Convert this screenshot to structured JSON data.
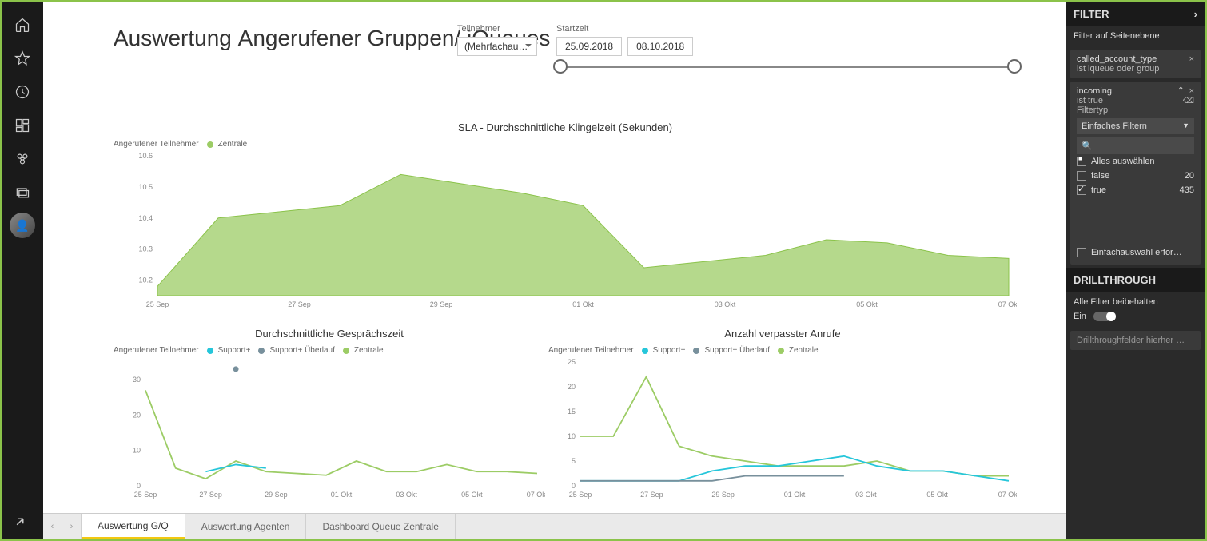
{
  "sidebar": {
    "items": [
      "home",
      "favorite",
      "recent",
      "workspace",
      "apps",
      "share",
      "avatar"
    ]
  },
  "page": {
    "title_light": "Auswertung ",
    "title_bold": "Angerufener Gruppen/ iQueues"
  },
  "teilnehmer": {
    "label": "Teilnehmer",
    "value": "(Mehrfachau…"
  },
  "startzeit": {
    "label": "Startzeit",
    "from": "25.09.2018",
    "to": "08.10.2018"
  },
  "colors": {
    "zentrale": "#9ccc65",
    "zentrale_line": "#8bc34a",
    "support": "#26c6da",
    "support_ueberlauf": "#78909c",
    "axis": "#888888",
    "text": "#666666"
  },
  "chart1": {
    "title": "SLA - Durchschnittliche Klingelzeit (Sekunden)",
    "legend_label": "Angerufener Teilnehmer",
    "legend_items": [
      {
        "label": "Zentrale",
        "color": "#9ccc65"
      }
    ],
    "type": "area",
    "x_labels": [
      "25 Sep",
      "27 Sep",
      "29 Sep",
      "01 Okt",
      "03 Okt",
      "05 Okt",
      "07 Okt"
    ],
    "y_ticks": [
      10.2,
      10.3,
      10.4,
      10.5,
      10.6
    ],
    "y_min": 10.15,
    "y_max": 10.6,
    "series": [
      {
        "name": "Zentrale",
        "color": "#9ccc65",
        "values": [
          10.18,
          10.4,
          10.42,
          10.44,
          10.54,
          10.51,
          10.48,
          10.44,
          10.24,
          10.26,
          10.28,
          10.33,
          10.32,
          10.28,
          10.27
        ]
      }
    ]
  },
  "chart2": {
    "title": "Durchschnittliche Gesprächszeit",
    "legend_label": "Angerufener Teilnehmer",
    "legend_items": [
      {
        "label": "Support+",
        "color": "#26c6da"
      },
      {
        "label": "Support+ Überlauf",
        "color": "#78909c"
      },
      {
        "label": "Zentrale",
        "color": "#9ccc65"
      }
    ],
    "type": "line",
    "x_labels": [
      "25 Sep",
      "27 Sep",
      "29 Sep",
      "01 Okt",
      "03 Okt",
      "05 Okt",
      "07 Okt"
    ],
    "y_ticks": [
      0,
      10,
      20,
      30
    ],
    "y_min": 0,
    "y_max": 35,
    "scatter": {
      "color": "#78909c",
      "x_index": 3,
      "y": 33
    },
    "series": [
      {
        "name": "Zentrale",
        "color": "#9ccc65",
        "values": [
          27,
          5,
          2,
          7,
          4,
          3.5,
          3,
          7,
          4,
          4,
          6,
          4,
          4,
          3.5
        ]
      },
      {
        "name": "Support+",
        "color": "#26c6da",
        "values": [
          null,
          null,
          4,
          6,
          5,
          null,
          null,
          2,
          null,
          null,
          null,
          null,
          null,
          null
        ]
      }
    ]
  },
  "chart3": {
    "title": "Anzahl verpasster Anrufe",
    "legend_label": "Angerufener Teilnehmer",
    "legend_items": [
      {
        "label": "Support+",
        "color": "#26c6da"
      },
      {
        "label": "Support+ Überlauf",
        "color": "#78909c"
      },
      {
        "label": "Zentrale",
        "color": "#9ccc65"
      }
    ],
    "type": "line",
    "x_labels": [
      "25 Sep",
      "27 Sep",
      "29 Sep",
      "01 Okt",
      "03 Okt",
      "05 Okt",
      "07 Okt"
    ],
    "y_ticks": [
      0,
      5,
      10,
      15,
      20,
      25
    ],
    "y_min": 0,
    "y_max": 25,
    "series": [
      {
        "name": "Zentrale",
        "color": "#9ccc65",
        "values": [
          10,
          10,
          22,
          8,
          6,
          5,
          4,
          4,
          4,
          5,
          3,
          3,
          2,
          2
        ]
      },
      {
        "name": "Support+",
        "color": "#26c6da",
        "values": [
          1,
          1,
          1,
          1,
          3,
          4,
          4,
          5,
          6,
          4,
          3,
          3,
          2,
          1
        ]
      },
      {
        "name": "Support+ Überlauf",
        "color": "#78909c",
        "values": [
          1,
          1,
          1,
          1,
          1,
          2,
          2,
          2,
          2,
          null,
          null,
          null,
          null,
          null
        ]
      }
    ]
  },
  "tabs": {
    "items": [
      "Auswertung G/Q",
      "Auswertung Agenten",
      "Dashboard Queue Zentrale"
    ],
    "active": 0
  },
  "filter_panel": {
    "title": "FILTER",
    "page_level": "Filter auf Seitenebene",
    "card1": {
      "name": "called_account_type",
      "desc": "ist iqueue oder group"
    },
    "card2": {
      "name": "incoming",
      "desc": "ist true",
      "filtertyp_label": "Filtertyp",
      "filtertyp_value": "Einfaches Filtern",
      "search_placeholder": "",
      "options": [
        {
          "label": "Alles auswählen",
          "count": "",
          "checked": "half"
        },
        {
          "label": "false",
          "count": "20",
          "checked": false
        },
        {
          "label": "true",
          "count": "435",
          "checked": true
        }
      ],
      "single_select": "Einfachauswahl erfor…"
    },
    "drillthrough": {
      "title": "DRILLTHROUGH",
      "keep_all": "Alle Filter beibehalten",
      "toggle_label": "Ein",
      "drop_text": "Drillthroughfelder hierher …"
    }
  }
}
